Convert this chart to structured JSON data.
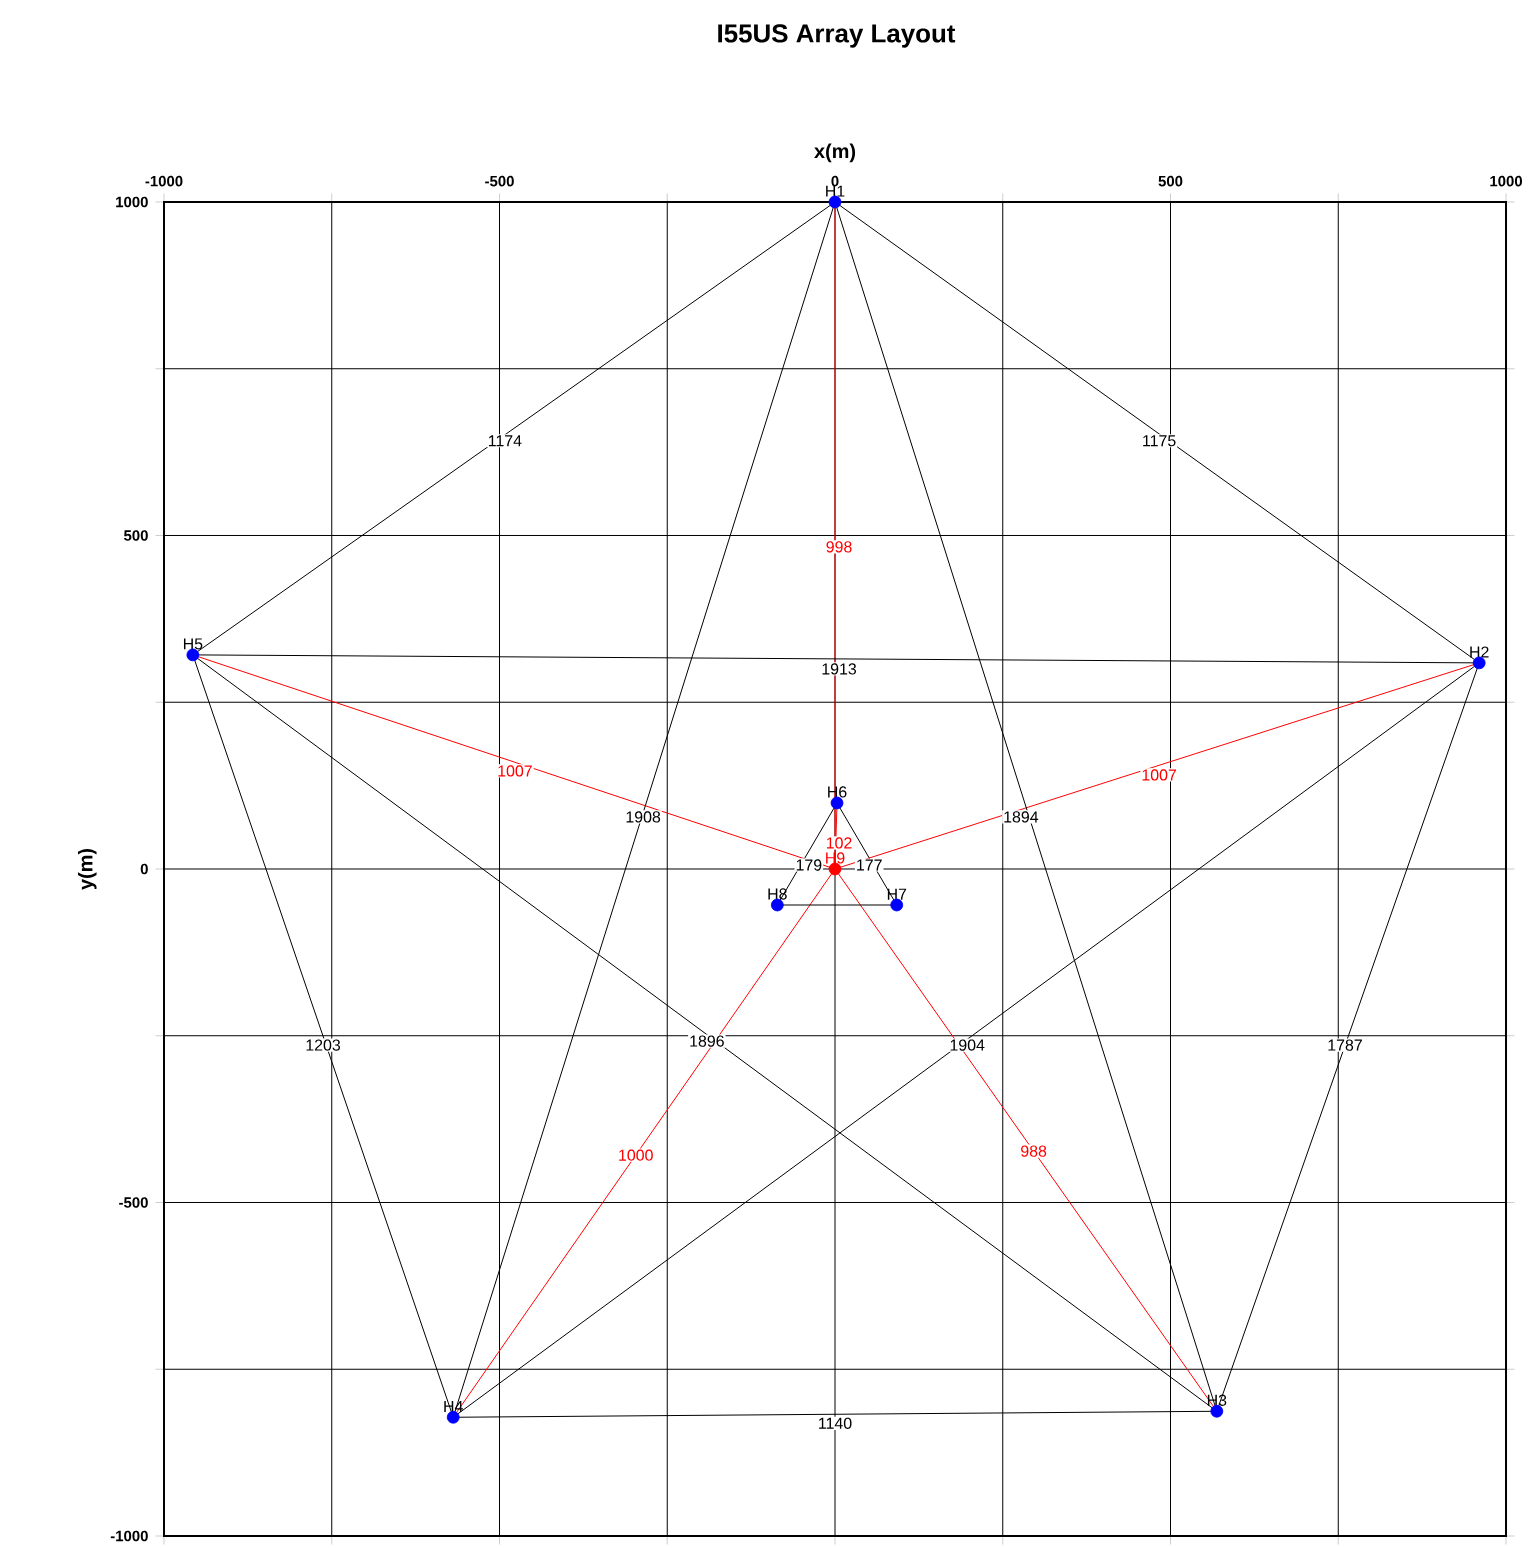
{
  "chart_data": {
    "type": "line",
    "title": "I55US Array Layout",
    "xlabel": "x(m)",
    "ylabel": "y(m)",
    "xlim": [
      -1000,
      1000
    ],
    "ylim": [
      -1000,
      1000
    ],
    "xticks": [
      -1000,
      {
        "value": -750,
        "label": null
      },
      -500,
      {
        "value": -250,
        "label": null
      },
      0,
      {
        "value": 250,
        "label": null
      },
      500,
      {
        "value": 750,
        "label": null
      },
      1000
    ],
    "yticks": [
      -1000,
      {
        "value": -750,
        "label": null
      },
      -500,
      {
        "value": -250,
        "label": null
      },
      0,
      {
        "value": 250,
        "label": null
      },
      500,
      {
        "value": 750,
        "label": null
      },
      1000
    ],
    "grid": true,
    "line_style": "solid",
    "series": [
      {
        "color": "#000000",
        "x": [
          0,
          960
        ],
        "values": [
          1000,
          309
        ]
      },
      {
        "color": "#000000",
        "x": [
          0,
          -957
        ],
        "values": [
          1000,
          321
        ]
      },
      {
        "color": "#ff0000",
        "x": [
          0,
          0
        ],
        "values": [
          0,
          1000
        ]
      },
      {
        "color": "#000000",
        "x": [
          960,
          -957
        ],
        "values": [
          309,
          321
        ]
      },
      {
        "color": "#ff0000",
        "x": [
          0,
          -957
        ],
        "values": [
          0,
          321
        ]
      },
      {
        "color": "#ff0000",
        "x": [
          0,
          960
        ],
        "values": [
          0,
          309
        ]
      },
      {
        "color": "#000000",
        "x": [
          0,
          -569
        ],
        "values": [
          1000,
          -822
        ]
      },
      {
        "color": "#000000",
        "x": [
          0,
          569
        ],
        "values": [
          1000,
          -813
        ]
      },
      {
        "color": "#ff0000",
        "x": [
          0,
          3
        ],
        "values": [
          0,
          99
        ]
      },
      {
        "color": "#000000",
        "x": [
          3,
          -86
        ],
        "values": [
          99,
          -54
        ]
      },
      {
        "color": "#000000",
        "x": [
          3,
          92
        ],
        "values": [
          99,
          -54
        ]
      },
      {
        "color": "#000000",
        "x": [
          -957,
          -569
        ],
        "values": [
          321,
          -822
        ]
      },
      {
        "color": "#000000",
        "x": [
          -957,
          569
        ],
        "values": [
          321,
          -813
        ]
      },
      {
        "color": "#000000",
        "x": [
          960,
          -569
        ],
        "values": [
          309,
          -822
        ]
      },
      {
        "color": "#000000",
        "x": [
          960,
          569
        ],
        "values": [
          309,
          -813
        ]
      },
      {
        "color": "#ff0000",
        "x": [
          0,
          -569
        ],
        "values": [
          0,
          -822
        ]
      },
      {
        "color": "#ff0000",
        "x": [
          0,
          569
        ],
        "values": [
          0,
          -813
        ]
      },
      {
        "color": "#000000",
        "x": [
          -569,
          569
        ],
        "values": [
          -822,
          -813
        ]
      },
      {
        "color": "#000000",
        "x": [
          -86,
          92
        ],
        "values": [
          -54,
          -54
        ]
      },
      {
        "type": "scatter",
        "marker": "circle",
        "x": [
          0,
          960,
          569,
          -569,
          -957,
          3,
          92,
          -86,
          0
        ],
        "values": [
          1000,
          309,
          -813,
          -822,
          321,
          99,
          -54,
          -54,
          0
        ],
        "colors": [
          "#0000ff",
          "#0000ff",
          "#0000ff",
          "#0000ff",
          "#0000ff",
          "#0000ff",
          "#0000ff",
          "#0000ff",
          "#ff0000"
        ],
        "value_labels": [
          "H1",
          "H2",
          "H3",
          "H4",
          "H5",
          "H6",
          "H7",
          "H8",
          "H9"
        ]
      }
    ],
    "annotations": [
      {
        "text": "1175",
        "x": 483,
        "y": 642
      },
      {
        "text": "1174",
        "x": -492,
        "y": 642
      },
      {
        "text": "998",
        "x": 6,
        "y": 483
      },
      {
        "text": "1913",
        "x": 6,
        "y": 300
      },
      {
        "text": "1007",
        "x": -477,
        "y": 147
      },
      {
        "text": "1007",
        "x": 483,
        "y": 141
      },
      {
        "text": "1908",
        "x": -286,
        "y": 78
      },
      {
        "text": "1894",
        "x": 277,
        "y": 78
      },
      {
        "text": "102",
        "x": 6,
        "y": 39
      },
      {
        "text": "179",
        "x": -39,
        "y": 6
      },
      {
        "text": "177",
        "x": 51,
        "y": 6
      },
      {
        "text": "1203",
        "x": -763,
        "y": -264
      },
      {
        "text": "1896",
        "x": -191,
        "y": -258
      },
      {
        "text": "1904",
        "x": 197,
        "y": -264
      },
      {
        "text": "1787",
        "x": 760,
        "y": -264
      },
      {
        "text": "1000",
        "x": -297,
        "y": -429
      },
      {
        "text": "988",
        "x": 296,
        "y": -423
      },
      {
        "text": "1140",
        "x": 0,
        "y": -831
      }
    ]
  }
}
